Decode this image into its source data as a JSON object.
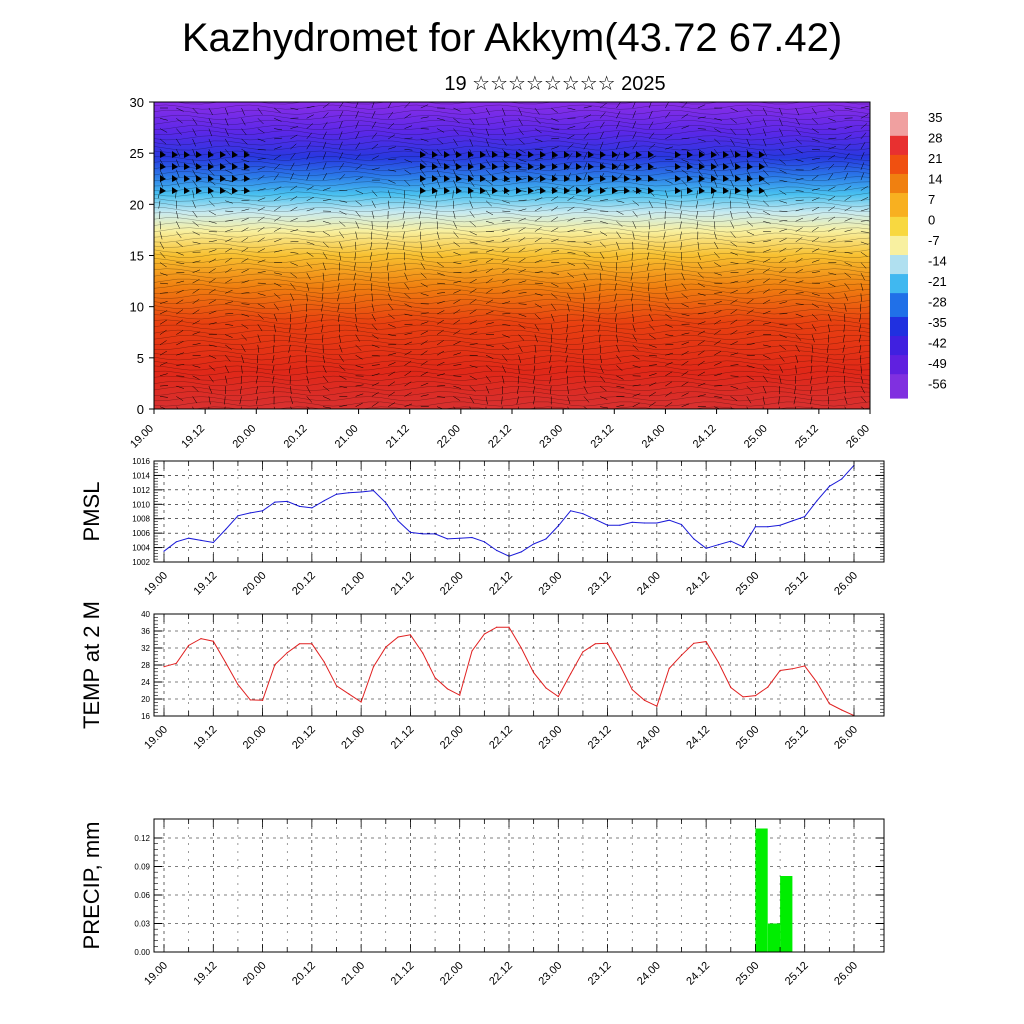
{
  "title": "Kazhydromet for Akkym(43.72 67.42)",
  "subtitle": "19 ☆☆☆☆☆☆☆☆ 2025",
  "time_labels": [
    "19.00",
    "19.12",
    "20.00",
    "20.12",
    "21.00",
    "21.12",
    "22.00",
    "22.12",
    "23.00",
    "23.12",
    "24.00",
    "24.12",
    "25.00",
    "25.12",
    "26.00"
  ],
  "colorbar": {
    "labels": [
      "35",
      "28",
      "21",
      "14",
      "7",
      "0",
      "-7",
      "-14",
      "-21",
      "-28",
      "-35",
      "-42",
      "-49",
      "-56"
    ],
    "colors": [
      "#f0a0a0",
      "#e83030",
      "#f05010",
      "#f08010",
      "#f8b020",
      "#f8d840",
      "#f8f0a0",
      "#b0e0f0",
      "#40b8f0",
      "#2070e8",
      "#2030e0",
      "#4020e0",
      "#6020e0",
      "#8030e0"
    ]
  },
  "chart_data": [
    {
      "type": "heatmap",
      "name": "vertical cross-section",
      "ylim": [
        0,
        30
      ],
      "yticks": [
        0,
        5,
        10,
        15,
        20,
        25,
        30
      ],
      "x": [
        "19.00",
        "19.12",
        "20.00",
        "20.12",
        "21.00",
        "21.12",
        "22.00",
        "22.12",
        "23.00",
        "23.12",
        "24.00",
        "24.12",
        "25.00",
        "25.12",
        "26.00"
      ],
      "colorscale_range": [
        -56,
        35
      ]
    },
    {
      "type": "line",
      "ylabel": "PMSL",
      "ylim": [
        1002,
        1016
      ],
      "yticks": [
        1002,
        1004,
        1006,
        1008,
        1010,
        1012,
        1014,
        1016
      ],
      "color": "#1a1ad8",
      "x": [
        19.0,
        19.125,
        19.25,
        19.375,
        19.5,
        19.625,
        19.75,
        19.875,
        20.0,
        20.125,
        20.25,
        20.375,
        20.5,
        20.625,
        20.75,
        20.875,
        21.0,
        21.125,
        21.25,
        21.375,
        21.5,
        21.625,
        21.75,
        21.875,
        22.0,
        22.125,
        22.25,
        22.375,
        22.5,
        22.625,
        22.75,
        22.875,
        23.0,
        23.125,
        23.25,
        23.375,
        23.5,
        23.625,
        23.75,
        23.875,
        24.0,
        24.125,
        24.25,
        24.375,
        24.5,
        24.625,
        24.75,
        24.875,
        25.0,
        25.125,
        25.25,
        25.375,
        25.5,
        25.625,
        25.75,
        25.875,
        26.0
      ],
      "values": [
        1003.5,
        1004.8,
        1005.3,
        1005.0,
        1004.7,
        1006.5,
        1008.4,
        1008.8,
        1009.1,
        1010.3,
        1010.4,
        1009.7,
        1009.5,
        1010.5,
        1011.4,
        1011.6,
        1011.7,
        1011.9,
        1010.2,
        1007.7,
        1006.1,
        1005.9,
        1005.9,
        1005.2,
        1005.3,
        1005.4,
        1004.8,
        1003.6,
        1002.8,
        1003.4,
        1004.5,
        1005.2,
        1007.0,
        1009.1,
        1008.7,
        1007.9,
        1007.1,
        1007.1,
        1007.5,
        1007.4,
        1007.4,
        1007.8,
        1007.2,
        1005.2,
        1003.9,
        1004.4,
        1004.9,
        1004.1,
        1006.9,
        1006.9,
        1007.1,
        1007.7,
        1008.3,
        1010.5,
        1012.5,
        1013.5,
        1015.4
      ]
    },
    {
      "type": "line",
      "ylabel": "TEMP at 2 M",
      "ylim": [
        16,
        40
      ],
      "yticks": [
        16,
        20,
        24,
        28,
        32,
        36,
        40
      ],
      "color": "#e02020",
      "x": [
        19.0,
        19.125,
        19.25,
        19.375,
        19.5,
        19.625,
        19.75,
        19.875,
        20.0,
        20.125,
        20.25,
        20.375,
        20.5,
        20.625,
        20.75,
        20.875,
        21.0,
        21.125,
        21.25,
        21.375,
        21.5,
        21.625,
        21.75,
        21.875,
        22.0,
        22.125,
        22.25,
        22.375,
        22.5,
        22.625,
        22.75,
        22.875,
        23.0,
        23.125,
        23.25,
        23.375,
        23.5,
        23.625,
        23.75,
        23.875,
        24.0,
        24.125,
        24.25,
        24.375,
        24.5,
        24.625,
        24.75,
        24.875,
        25.0,
        25.125,
        25.25,
        25.375,
        25.5,
        25.625,
        25.75,
        25.875,
        26.0
      ],
      "values": [
        27.6,
        28.4,
        32.6,
        34.2,
        33.6,
        28.6,
        23.4,
        19.8,
        19.7,
        28.1,
        30.9,
        33.0,
        33.0,
        28.7,
        23.1,
        21.2,
        19.3,
        27.6,
        32.2,
        34.6,
        35.1,
        30.8,
        25.0,
        22.4,
        20.9,
        31.3,
        35.3,
        36.9,
        36.9,
        32.0,
        26.2,
        22.6,
        20.6,
        25.9,
        31.1,
        33.0,
        33.1,
        28.0,
        22.2,
        19.7,
        18.3,
        27.2,
        30.3,
        33.1,
        33.5,
        28.6,
        22.7,
        20.5,
        20.8,
        22.8,
        26.7,
        27.1,
        27.8,
        23.9,
        18.9,
        17.4,
        16.1
      ]
    },
    {
      "type": "bar",
      "ylabel": "PRECIP, mm",
      "ylim": [
        0,
        0.14
      ],
      "yticks": [
        "0.00",
        "0.03",
        "0.06",
        "0.09",
        "0.12"
      ],
      "color": "#00ee00",
      "x": [
        25.0,
        25.125,
        25.25
      ],
      "values": [
        0.13,
        0.03,
        0.08
      ]
    }
  ]
}
